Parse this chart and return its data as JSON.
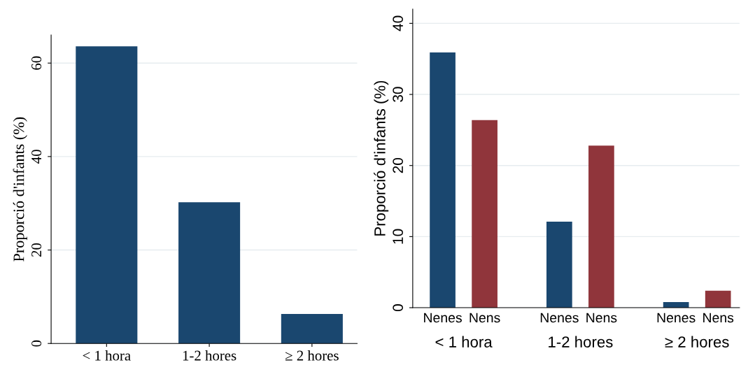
{
  "chart_data": [
    {
      "type": "bar",
      "ylabel": "Proporció d'infants (%)",
      "categories": [
        "< 1 hora",
        "1-2 hores",
        "≥ 2 hores"
      ],
      "series": [
        {
          "color": "#1a476f",
          "values": [
            63.6,
            30.2,
            6.3
          ]
        }
      ],
      "ylim": [
        0,
        66
      ],
      "yticks": [
        0,
        20,
        40,
        60
      ],
      "grid": "y",
      "legend": false
    },
    {
      "type": "bar",
      "ylabel": "Proporció d'infants (%)",
      "categories": [
        "< 1 hora",
        "1-2 hores",
        "≥ 2 hores"
      ],
      "series": [
        {
          "name": "Nenes",
          "color": "#1a476f",
          "values": [
            35.9,
            12.1,
            0.8
          ]
        },
        {
          "name": "Nens",
          "color": "#90353b",
          "values": [
            26.4,
            22.8,
            2.4
          ]
        }
      ],
      "ylim": [
        0,
        42
      ],
      "yticks": [
        0,
        10,
        20,
        30,
        40
      ],
      "grid": "y",
      "legend": false
    }
  ]
}
